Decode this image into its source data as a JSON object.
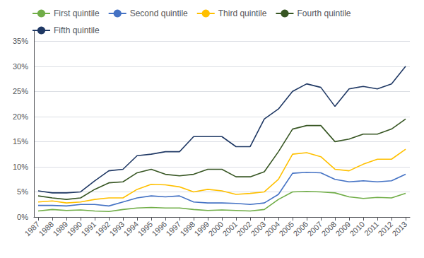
{
  "chart_data": {
    "type": "line",
    "x": [
      1987,
      1988,
      1989,
      1990,
      1991,
      1992,
      1993,
      1994,
      1995,
      1996,
      1997,
      1998,
      1999,
      2000,
      2001,
      2002,
      2003,
      2004,
      2005,
      2006,
      2007,
      2008,
      2009,
      2010,
      2011,
      2012,
      2013
    ],
    "series": [
      {
        "name": "First quintile",
        "color": "#70ad47",
        "values": [
          1.2,
          1.5,
          1.3,
          1.4,
          1.2,
          1.1,
          1.5,
          1.8,
          1.9,
          1.8,
          1.8,
          1.5,
          1.3,
          1.4,
          1.3,
          1.2,
          1.5,
          3.5,
          5.0,
          5.1,
          5.0,
          4.8,
          4.0,
          3.7,
          3.9,
          3.8,
          4.7
        ]
      },
      {
        "name": "Second quintile",
        "color": "#4472c4",
        "values": [
          2.3,
          2.3,
          2.2,
          2.5,
          2.5,
          2.2,
          3.0,
          3.8,
          4.2,
          4.0,
          4.2,
          3.0,
          2.8,
          2.8,
          2.7,
          2.5,
          2.8,
          4.5,
          8.7,
          8.9,
          8.8,
          7.5,
          7.0,
          7.2,
          7.0,
          7.2,
          8.5
        ]
      },
      {
        "name": "Third quintile",
        "color": "#ffc000",
        "values": [
          3.0,
          3.2,
          2.8,
          3.0,
          3.5,
          3.8,
          3.8,
          5.5,
          6.5,
          6.4,
          6.0,
          5.0,
          5.5,
          5.2,
          4.5,
          4.7,
          5.0,
          7.5,
          12.5,
          12.8,
          12.0,
          9.5,
          9.2,
          10.5,
          11.5,
          11.5,
          13.5
        ]
      },
      {
        "name": "Fourth quintile",
        "color": "#375623",
        "values": [
          4.2,
          3.8,
          3.5,
          3.8,
          5.5,
          6.8,
          7.0,
          8.8,
          9.5,
          8.5,
          8.2,
          8.5,
          9.5,
          9.5,
          8.0,
          8.0,
          9.0,
          13.0,
          17.5,
          18.2,
          18.2,
          15.0,
          15.5,
          16.5,
          16.5,
          17.5,
          19.5
        ]
      },
      {
        "name": "Fifth quintile",
        "color": "#1f3864",
        "values": [
          5.2,
          4.8,
          4.8,
          5.0,
          7.2,
          9.2,
          9.5,
          12.2,
          12.5,
          13.0,
          13.0,
          16.0,
          16.0,
          16.0,
          14.0,
          14.0,
          19.5,
          21.5,
          25.0,
          26.5,
          25.8,
          22.0,
          25.5,
          26.0,
          25.5,
          26.5,
          30.0
        ]
      }
    ],
    "xlim": [
      1986.7,
      2013.3
    ],
    "xticks": [
      1987,
      1988,
      1989,
      1990,
      1991,
      1992,
      1993,
      1994,
      1995,
      1996,
      1997,
      1998,
      1999,
      2000,
      2001,
      2002,
      2003,
      2004,
      2005,
      2006,
      2007,
      2008,
      2009,
      2010,
      2011,
      2012,
      2013
    ],
    "ylim": [
      0,
      37
    ],
    "yticks": [
      {
        "value": 0,
        "label": "0%"
      },
      {
        "value": 5,
        "label": "5%"
      },
      {
        "value": 10,
        "label": "10%"
      },
      {
        "value": 15,
        "label": "15%"
      },
      {
        "value": 20,
        "label": "20%"
      },
      {
        "value": 25,
        "label": "25%"
      },
      {
        "value": 30,
        "label": "30%"
      },
      {
        "value": 35,
        "label": "35%"
      }
    ],
    "grid": true,
    "legend": "upper left"
  }
}
